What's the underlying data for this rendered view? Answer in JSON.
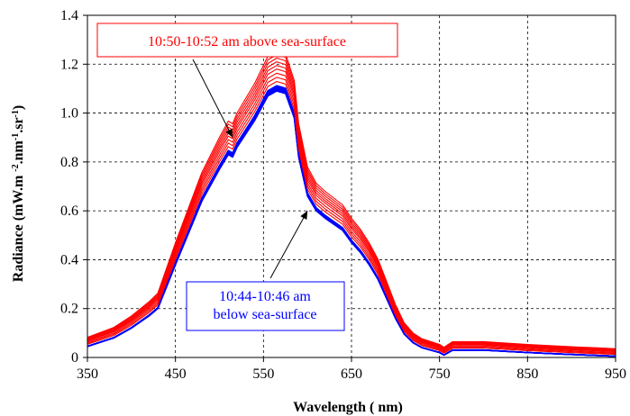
{
  "chart_data": {
    "type": "line",
    "title": "",
    "xlabel": "Wavelength ( nm)",
    "ylabel_parts": {
      "main": "Radiance (mW.m ",
      "exp1": "-2",
      "mid": ".nm",
      "exp2": "-1",
      "mid2": ".sr",
      "exp3": "-1",
      "end": ")"
    },
    "xlim": [
      350,
      950
    ],
    "ylim": [
      0,
      1.4
    ],
    "xticks": [
      "350",
      "450",
      "550",
      "650",
      "750",
      "850",
      "950"
    ],
    "yticks": [
      "0",
      "0.2",
      "0.4",
      "0.6",
      "0.8",
      "1.0",
      "1.2",
      "1.4"
    ],
    "grid": true,
    "colors": {
      "above": "#ff0000",
      "below": "#0000ff"
    },
    "base_curve": {
      "x": [
        350,
        380,
        400,
        420,
        430,
        450,
        480,
        500,
        510,
        515,
        520,
        540,
        555,
        565,
        575,
        585,
        590,
        600,
        610,
        620,
        640,
        650,
        660,
        670,
        680,
        690,
        700,
        710,
        720,
        730,
        750,
        755,
        760,
        765,
        770,
        800,
        850,
        900,
        930,
        950
      ],
      "y": [
        0.045,
        0.08,
        0.12,
        0.17,
        0.2,
        0.38,
        0.64,
        0.77,
        0.83,
        0.82,
        0.86,
        0.97,
        1.07,
        1.09,
        1.08,
        0.98,
        0.82,
        0.66,
        0.6,
        0.57,
        0.52,
        0.47,
        0.43,
        0.38,
        0.32,
        0.24,
        0.16,
        0.095,
        0.06,
        0.04,
        0.02,
        0.01,
        0.02,
        0.03,
        0.03,
        0.03,
        0.02,
        0.012,
        0.008,
        0.005
      ]
    },
    "series": [
      {
        "group": "below",
        "scale": 1.0
      },
      {
        "group": "below",
        "scale": 1.004
      },
      {
        "group": "below",
        "scale": 1.008
      },
      {
        "group": "below",
        "scale": 1.012
      },
      {
        "group": "below",
        "scale": 1.016
      },
      {
        "group": "below",
        "scale": 1.02
      },
      {
        "group": "above",
        "scale": 1.025,
        "offset": 0.012
      },
      {
        "group": "above",
        "scale": 1.035,
        "offset": 0.018
      },
      {
        "group": "above",
        "scale": 1.045,
        "offset": 0.024
      },
      {
        "group": "above",
        "scale": 1.055,
        "offset": 0.03
      },
      {
        "group": "above",
        "scale": 1.065,
        "offset": 0.034
      },
      {
        "group": "above",
        "scale": 1.075,
        "offset": 0.038
      },
      {
        "group": "above",
        "scale": 1.085,
        "offset": 0.042
      },
      {
        "group": "above",
        "scale": 1.095,
        "offset": 0.046
      },
      {
        "group": "above",
        "scale": 1.105,
        "offset": 0.05
      }
    ],
    "annotations": [
      {
        "id": "above",
        "lines": [
          "10:50-10:52 am above sea-surface"
        ],
        "arrow_to": [
          515,
          0.9
        ]
      },
      {
        "id": "below",
        "lines": [
          "10:44-10:46 am",
          "below sea-surface"
        ],
        "arrow_to": [
          600,
          0.6
        ]
      }
    ]
  }
}
